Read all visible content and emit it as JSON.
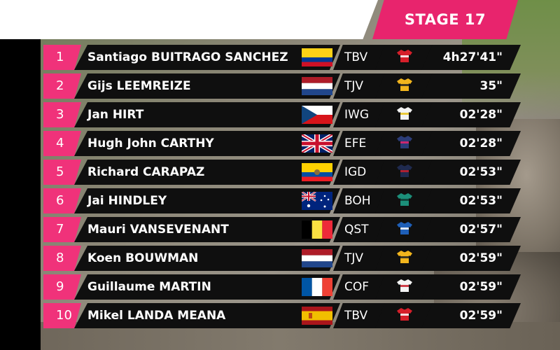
{
  "header": {
    "stage_label": "STAGE 17"
  },
  "rows": [
    {
      "rank": "1",
      "name": "Santiago BUITRAGO SANCHEZ",
      "team": "TBV",
      "time": "4h27'41\"",
      "flag": "flag-colombia",
      "jersey": "jersey-red"
    },
    {
      "rank": "2",
      "name": "Gijs LEEMREIZE",
      "team": "TJV",
      "time": "35\"",
      "flag": "flag-netherlands",
      "jersey": "jersey-yellow"
    },
    {
      "rank": "3",
      "name": "Jan HIRT",
      "team": "IWG",
      "time": "02'28\"",
      "flag": "flag-czech",
      "jersey": "jersey-white-yellow"
    },
    {
      "rank": "4",
      "name": "Hugh John CARTHY",
      "team": "EFE",
      "time": "02'28\"",
      "flag": "flag-uk",
      "jersey": "jersey-pink-blue"
    },
    {
      "rank": "5",
      "name": "Richard CARAPAZ",
      "team": "IGD",
      "time": "02'53\"",
      "flag": "flag-ecuador",
      "jersey": "jersey-navy-red"
    },
    {
      "rank": "6",
      "name": "Jai HINDLEY",
      "team": "BOH",
      "time": "02'53\"",
      "flag": "flag-australia",
      "jersey": "jersey-teal"
    },
    {
      "rank": "7",
      "name": "Mauri VANSEVENANT",
      "team": "QST",
      "time": "02'57\"",
      "flag": "flag-belgium",
      "jersey": "jersey-blue"
    },
    {
      "rank": "8",
      "name": "Koen BOUWMAN",
      "team": "TJV",
      "time": "02'59\"",
      "flag": "flag-netherlands",
      "jersey": "jersey-yellow"
    },
    {
      "rank": "9",
      "name": "Guillaume MARTIN",
      "team": "COF",
      "time": "02'59\"",
      "flag": "flag-france",
      "jersey": "jersey-white-red"
    },
    {
      "rank": "10",
      "name": "Mikel LANDA MEANA",
      "team": "TBV",
      "time": "02'59\"",
      "flag": "flag-spain",
      "jersey": "jersey-red"
    }
  ],
  "colors": {
    "accent": "#e8246d",
    "rank_bg": "#f0327a",
    "row_bg": "#0f0f0f"
  }
}
